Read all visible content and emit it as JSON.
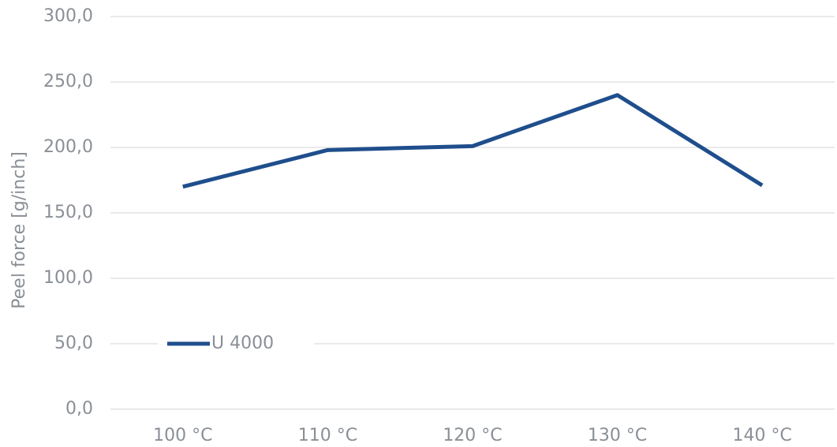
{
  "chart_data": {
    "type": "line",
    "y_label": "Peel force [g/inch]",
    "categories": [
      "100 °C",
      "110 °C",
      "120 °C",
      "130 °C",
      "140 °C"
    ],
    "series": [
      {
        "name": "U 4000",
        "color": "#1f4e8c",
        "values": [
          170,
          198,
          201,
          240,
          171
        ]
      }
    ],
    "ylim": [
      0,
      300
    ],
    "yticks": [
      {
        "value": 0,
        "label": "0,0"
      },
      {
        "value": 50,
        "label": "50,0"
      },
      {
        "value": 100,
        "label": "100,0"
      },
      {
        "value": 150,
        "label": "150,0"
      },
      {
        "value": 200,
        "label": "200,0"
      },
      {
        "value": 250,
        "label": "250,0"
      },
      {
        "value": 300,
        "label": "300,0"
      }
    ],
    "grid": true,
    "legend": "lower left"
  }
}
